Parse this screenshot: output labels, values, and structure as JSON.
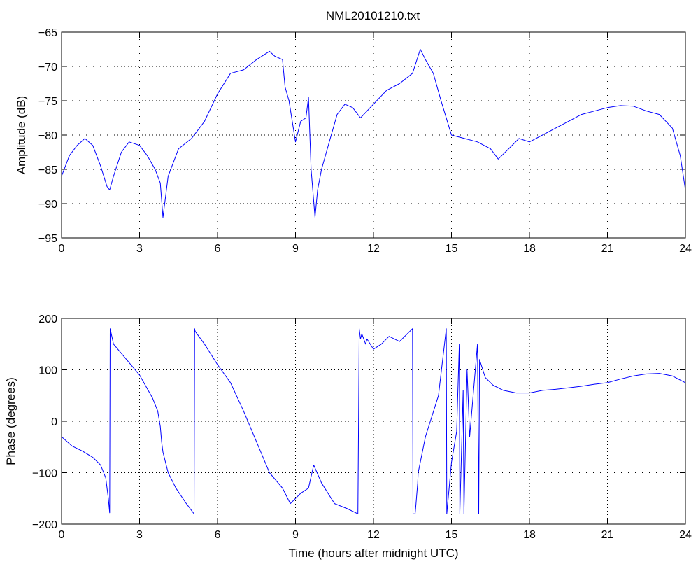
{
  "figure": {
    "title": "NML20101210.txt"
  },
  "chart_data": [
    {
      "type": "line",
      "title": "NML20101210.txt",
      "xlabel": "",
      "ylabel": "Amplitude (dB)",
      "xlim": [
        0,
        24
      ],
      "ylim": [
        -95,
        -65
      ],
      "xticks": [
        "0",
        "3",
        "6",
        "9",
        "12",
        "15",
        "18",
        "21",
        "24"
      ],
      "yticks": [
        "-95",
        "-90",
        "-85",
        "-80",
        "-75",
        "-70",
        "-65"
      ],
      "grid": true,
      "color": "#0000ff",
      "series": [
        {
          "x": [
            0,
            0.3,
            0.6,
            0.9,
            1.2,
            1.5,
            1.75,
            1.85,
            2.0,
            2.3,
            2.6,
            3.0,
            3.3,
            3.6,
            3.8,
            3.9,
            4.1,
            4.5,
            5.0,
            5.5,
            6.0,
            6.5,
            7.0,
            7.5,
            8.0,
            8.2,
            8.5,
            8.6,
            8.75,
            9.0,
            9.2,
            9.4,
            9.5,
            9.6,
            9.75,
            9.85,
            10.0,
            10.3,
            10.6,
            10.9,
            11.2,
            11.5,
            12.0,
            12.5,
            13.0,
            13.5,
            13.8,
            14.0,
            14.3,
            14.6,
            15.0,
            15.5,
            16.0,
            16.5,
            16.8,
            17.2,
            17.6,
            18.0,
            18.5,
            19.0,
            19.5,
            20.0,
            20.5,
            21.0,
            21.5,
            22.0,
            22.5,
            23.0,
            23.5,
            23.8,
            24.0
          ],
          "y": [
            -86,
            -83,
            -81.5,
            -80.5,
            -81.5,
            -84.5,
            -87.5,
            -88,
            -86,
            -82.5,
            -81,
            -81.5,
            -83,
            -85,
            -87,
            -92,
            -86,
            -82,
            -80.5,
            -78,
            -74,
            -71,
            -70.5,
            -69,
            -67.8,
            -68.5,
            -69,
            -73,
            -75,
            -81,
            -78,
            -77.5,
            -74.5,
            -85,
            -92,
            -88,
            -85,
            -81,
            -77,
            -75.5,
            -76,
            -77.5,
            -75.5,
            -73.5,
            -72.5,
            -71,
            -67.5,
            -69,
            -71,
            -75,
            -80,
            -80.5,
            -81,
            -82,
            -83.5,
            -82,
            -80.5,
            -81,
            -80,
            -79,
            -78,
            -77,
            -76.5,
            -76,
            -75.7,
            -75.8,
            -76.5,
            -77,
            -79,
            -83,
            -88
          ]
        }
      ]
    },
    {
      "type": "line",
      "title": "",
      "xlabel": "Time (hours after midnight UTC)",
      "ylabel": "Phase (degrees)",
      "xlim": [
        0,
        24
      ],
      "ylim": [
        -200,
        200
      ],
      "xticks": [
        "0",
        "3",
        "6",
        "9",
        "12",
        "15",
        "18",
        "21",
        "24"
      ],
      "yticks": [
        "-200",
        "-100",
        "0",
        "100",
        "200"
      ],
      "grid": true,
      "color": "#0000ff",
      "series": [
        {
          "x": [
            0,
            0.4,
            0.8,
            1.2,
            1.5,
            1.7,
            1.8,
            1.85,
            1.87,
            2.0,
            2.5,
            3.0,
            3.5,
            3.7,
            3.8,
            3.85,
            3.9,
            4.1,
            4.4,
            4.8,
            5.1,
            5.12,
            5.14,
            5.5,
            6.0,
            6.5,
            7.0,
            7.5,
            8.0,
            8.5,
            8.8,
            9.2,
            9.5,
            9.7,
            10.0,
            10.5,
            11.0,
            11.4,
            11.45,
            11.5,
            11.55,
            11.7,
            11.75,
            12.0,
            12.3,
            12.6,
            13.0,
            13.3,
            13.5,
            13.52,
            13.6,
            13.62,
            13.7,
            13.72,
            14.0,
            14.5,
            14.8,
            14.82,
            15.0,
            15.2,
            15.3,
            15.32,
            15.45,
            15.48,
            15.6,
            15.7,
            16.0,
            16.05,
            16.08,
            16.3,
            16.6,
            17.0,
            17.5,
            18.0,
            18.5,
            19.0,
            19.5,
            20.0,
            20.5,
            21.0,
            21.5,
            22.0,
            22.5,
            23.0,
            23.5,
            24.0
          ],
          "y": [
            -30,
            -48,
            -58,
            -70,
            -85,
            -110,
            -150,
            -178,
            180,
            150,
            120,
            90,
            45,
            20,
            -10,
            -40,
            -60,
            -100,
            -130,
            -160,
            -180,
            180,
            175,
            150,
            110,
            75,
            20,
            -40,
            -100,
            -130,
            -160,
            -140,
            -130,
            -85,
            -120,
            -160,
            -170,
            -180,
            180,
            160,
            170,
            150,
            160,
            140,
            150,
            165,
            155,
            170,
            180,
            -180,
            -180,
            -170,
            -120,
            -100,
            -30,
            50,
            180,
            -180,
            -80,
            -20,
            150,
            -180,
            60,
            -180,
            100,
            -30,
            150,
            -180,
            120,
            85,
            70,
            60,
            55,
            55,
            60,
            62,
            65,
            68,
            72,
            75,
            82,
            88,
            92,
            93,
            88,
            75
          ]
        }
      ]
    }
  ]
}
